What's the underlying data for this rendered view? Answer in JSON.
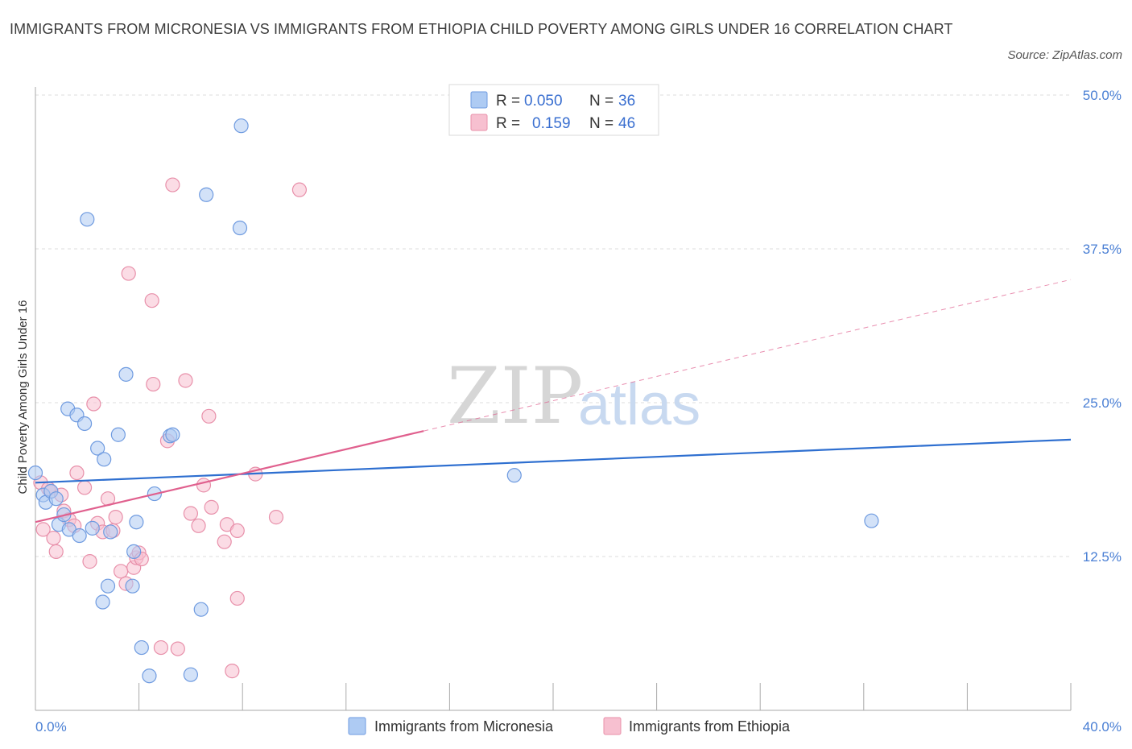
{
  "title": "IMMIGRANTS FROM MICRONESIA VS IMMIGRANTS FROM ETHIOPIA CHILD POVERTY AMONG GIRLS UNDER 16 CORRELATION CHART",
  "source": "Source: ZipAtlas.com",
  "watermark": {
    "zip": "ZIP",
    "atlas": "atlas"
  },
  "legend": {
    "rows": [
      {
        "r_label": "R =",
        "r_value": "0.050",
        "n_label": "N =",
        "n_value": "36"
      },
      {
        "r_label": "R =",
        "r_value": "0.159",
        "n_label": "N =",
        "n_value": "46"
      }
    ]
  },
  "bottom_legend": [
    {
      "label": "Immigrants from Micronesia"
    },
    {
      "label": "Immigrants from Ethiopia"
    }
  ],
  "colors": {
    "micronesia_fill": "#aecbf3",
    "micronesia_stroke": "#6f9be0",
    "micronesia_line": "#2e6fd0",
    "ethiopia_fill": "#f7c0d0",
    "ethiopia_stroke": "#e890aa",
    "ethiopia_line": "#e0608e",
    "grid": "#dddddd",
    "tick_text": "#4a7fd4"
  },
  "chart_data": {
    "type": "scatter",
    "xlabel": "",
    "ylabel": "Child Poverty Among Girls Under 16",
    "xlim": [
      0,
      40
    ],
    "ylim": [
      0,
      50
    ],
    "x_tick_labels": [
      "0.0%",
      "40.0%"
    ],
    "y_ticks": [
      12.5,
      25.0,
      37.5,
      50.0
    ],
    "y_tick_labels": [
      "12.5%",
      "25.0%",
      "37.5%",
      "50.0%"
    ],
    "grid": "horizontal dashed",
    "series": [
      {
        "name": "Immigrants from Micronesia",
        "R": 0.05,
        "N": 36,
        "points": [
          [
            0.0,
            19.3
          ],
          [
            0.3,
            17.5
          ],
          [
            0.4,
            16.9
          ],
          [
            0.6,
            17.8
          ],
          [
            0.8,
            17.2
          ],
          [
            0.9,
            15.1
          ],
          [
            1.1,
            15.9
          ],
          [
            1.3,
            14.7
          ],
          [
            1.25,
            24.5
          ],
          [
            1.6,
            24.0
          ],
          [
            1.7,
            14.2
          ],
          [
            1.9,
            23.3
          ],
          [
            2.0,
            39.9
          ],
          [
            2.2,
            14.8
          ],
          [
            2.4,
            21.3
          ],
          [
            2.6,
            8.8
          ],
          [
            2.65,
            20.4
          ],
          [
            2.8,
            10.1
          ],
          [
            2.9,
            14.5
          ],
          [
            3.2,
            22.4
          ],
          [
            3.5,
            27.3
          ],
          [
            3.75,
            10.1
          ],
          [
            3.8,
            12.9
          ],
          [
            3.9,
            15.3
          ],
          [
            4.1,
            5.1
          ],
          [
            4.4,
            2.8
          ],
          [
            4.6,
            17.6
          ],
          [
            5.2,
            22.3
          ],
          [
            5.3,
            22.4
          ],
          [
            6.0,
            2.9
          ],
          [
            6.4,
            8.2
          ],
          [
            6.6,
            41.9
          ],
          [
            7.9,
            39.2
          ],
          [
            7.95,
            47.5
          ],
          [
            18.5,
            19.1
          ],
          [
            32.3,
            15.4
          ]
        ]
      },
      {
        "name": "Immigrants from Ethiopia",
        "R": 0.159,
        "N": 46,
        "points": [
          [
            0.2,
            18.5
          ],
          [
            0.3,
            14.7
          ],
          [
            0.5,
            18.0
          ],
          [
            0.6,
            17.8
          ],
          [
            0.7,
            14.0
          ],
          [
            0.8,
            12.9
          ],
          [
            1.0,
            17.5
          ],
          [
            1.1,
            16.2
          ],
          [
            1.3,
            15.5
          ],
          [
            1.5,
            15.0
          ],
          [
            1.6,
            19.3
          ],
          [
            1.9,
            18.1
          ],
          [
            2.1,
            12.1
          ],
          [
            2.25,
            24.9
          ],
          [
            2.4,
            15.2
          ],
          [
            2.6,
            14.5
          ],
          [
            2.8,
            17.2
          ],
          [
            3.0,
            14.6
          ],
          [
            3.1,
            15.7
          ],
          [
            3.3,
            11.3
          ],
          [
            3.5,
            10.3
          ],
          [
            3.6,
            35.5
          ],
          [
            3.8,
            11.6
          ],
          [
            3.9,
            12.4
          ],
          [
            4.0,
            12.8
          ],
          [
            4.1,
            12.3
          ],
          [
            4.5,
            33.3
          ],
          [
            4.55,
            26.5
          ],
          [
            4.85,
            5.1
          ],
          [
            5.1,
            21.9
          ],
          [
            5.3,
            42.7
          ],
          [
            5.5,
            5.0
          ],
          [
            5.8,
            26.8
          ],
          [
            6.0,
            16.0
          ],
          [
            6.3,
            15.0
          ],
          [
            6.5,
            18.3
          ],
          [
            6.7,
            23.9
          ],
          [
            6.8,
            16.5
          ],
          [
            7.3,
            13.7
          ],
          [
            7.4,
            15.1
          ],
          [
            7.6,
            3.2
          ],
          [
            7.8,
            14.6
          ],
          [
            7.8,
            9.1
          ],
          [
            8.5,
            19.2
          ],
          [
            9.3,
            15.7
          ],
          [
            10.2,
            42.3
          ]
        ]
      }
    ],
    "trend_lines": [
      {
        "series": "Immigrants from Micronesia",
        "x1": 0,
        "y1": 18.5,
        "x2": 40,
        "y2": 22.0,
        "style": "solid"
      },
      {
        "series": "Immigrants from Ethiopia",
        "x1": 0,
        "y1": 15.3,
        "x2": 15.0,
        "y2": 22.7,
        "style": "solid"
      },
      {
        "series": "Immigrants from Ethiopia",
        "x1": 15.0,
        "y1": 22.7,
        "x2": 40,
        "y2": 35.0,
        "style": "dashed"
      }
    ]
  }
}
